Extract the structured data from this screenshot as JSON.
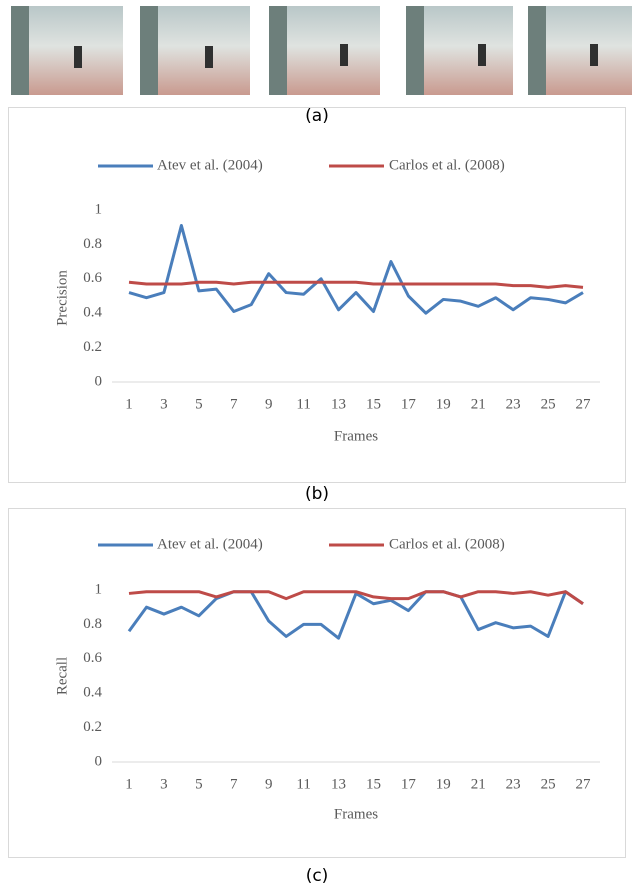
{
  "captions": [
    "(a)",
    "(b)",
    "(c)"
  ],
  "chart_data": [
    {
      "type": "line",
      "y_label": "Precision",
      "x_label": "Frames",
      "categories": [
        "1",
        null,
        "3",
        null,
        "5",
        null,
        "7",
        null,
        "9",
        null,
        "11",
        null,
        "13",
        null,
        "15",
        null,
        "17",
        null,
        "19",
        null,
        "21",
        null,
        "23",
        null,
        "25",
        null,
        "27"
      ],
      "series": [
        {
          "name": "Atev et al. (2004)",
          "color": "#4a7ebb",
          "values": [
            0.52,
            0.49,
            0.52,
            0.91,
            0.53,
            0.54,
            0.41,
            0.45,
            0.63,
            0.52,
            0.51,
            0.6,
            0.42,
            0.52,
            0.41,
            0.7,
            0.5,
            0.4,
            0.48,
            0.47,
            0.44,
            0.49,
            0.42,
            0.49,
            0.48,
            0.46,
            0.52
          ]
        },
        {
          "name": "Carlos et al. (2008)",
          "color": "#be4b48",
          "values": [
            0.58,
            0.57,
            0.57,
            0.57,
            0.58,
            0.58,
            0.57,
            0.58,
            0.58,
            0.58,
            0.58,
            0.58,
            0.58,
            0.58,
            0.57,
            0.57,
            0.57,
            0.57,
            0.57,
            0.57,
            0.57,
            0.57,
            0.56,
            0.56,
            0.55,
            0.56,
            0.55
          ]
        }
      ],
      "ylim": [
        0,
        1
      ],
      "yticks": [
        0,
        0.2,
        0.4,
        0.6,
        0.8,
        1
      ],
      "legend": "top",
      "grid": false
    },
    {
      "type": "line",
      "y_label": "Recall",
      "x_label": "Frames",
      "categories": [
        "1",
        null,
        "3",
        null,
        "5",
        null,
        "7",
        null,
        "9",
        null,
        "11",
        null,
        "13",
        null,
        "15",
        null,
        "17",
        null,
        "19",
        null,
        "21",
        null,
        "23",
        null,
        "25",
        null,
        "27"
      ],
      "series": [
        {
          "name": "Atev et al. (2004)",
          "color": "#4a7ebb",
          "values": [
            0.76,
            0.9,
            0.86,
            0.9,
            0.85,
            0.95,
            0.99,
            0.99,
            0.82,
            0.73,
            0.8,
            0.8,
            0.72,
            0.98,
            0.92,
            0.94,
            0.88,
            0.99,
            0.99,
            0.96,
            0.77,
            0.81,
            0.78,
            0.79,
            0.73,
            0.99,
            0.92
          ]
        },
        {
          "name": "Carlos et al. (2008)",
          "color": "#be4b48",
          "values": [
            0.98,
            0.99,
            0.99,
            0.99,
            0.99,
            0.96,
            0.99,
            0.99,
            0.99,
            0.95,
            0.99,
            0.99,
            0.99,
            0.99,
            0.96,
            0.95,
            0.95,
            0.99,
            0.99,
            0.96,
            0.99,
            0.99,
            0.98,
            0.99,
            0.97,
            0.99,
            0.92
          ]
        }
      ],
      "ylim": [
        0,
        1
      ],
      "yticks": [
        0,
        0.2,
        0.4,
        0.6,
        0.8,
        1
      ],
      "legend": "top",
      "grid": false
    }
  ]
}
